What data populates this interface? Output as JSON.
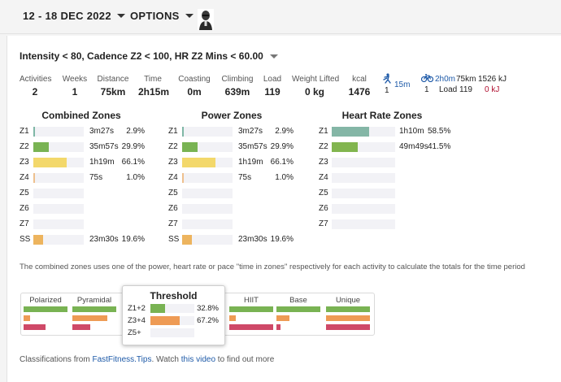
{
  "topbar": {
    "date_range": "12 - 18 DEC 2022",
    "options_label": "OPTIONS",
    "avatar_icon": "user-avatar-icon"
  },
  "filter": {
    "label": "Intensity < 80, Cadence Z2 < 100, HR Z2 Mins < 60.00"
  },
  "stats": [
    {
      "label": "Activities",
      "value": "2"
    },
    {
      "label": "Weeks",
      "value": "1"
    },
    {
      "label": "Distance",
      "value": "75km"
    },
    {
      "label": "Time",
      "value": "2h15m"
    },
    {
      "label": "Coasting",
      "value": "0m"
    },
    {
      "label": "Climbing",
      "value": "639m"
    },
    {
      "label": "Load",
      "value": "119"
    },
    {
      "label": "Weight Lifted",
      "value": "0 kg"
    },
    {
      "label": "kcal",
      "value": "1476"
    }
  ],
  "sports": {
    "run": {
      "icon": "running-icon",
      "time": "15m",
      "count": "1"
    },
    "ride": {
      "icon": "cycling-icon",
      "time": "2h0m",
      "distance": "75km",
      "energy": "1526 kJ",
      "count": "1",
      "load": "Load 119",
      "energy2": "0 kJ"
    }
  },
  "colors": {
    "z1": "#7fb7a6",
    "z2": "#79b353",
    "z3": "#f3d86b",
    "z4": "#eec08e",
    "ss": "#edb45e",
    "hr1": "#84b6a6",
    "hr2": "#82b54f",
    "red": "#cf4968",
    "orange": "#ee9b55",
    "green": "#79b353",
    "link": "#1e5aa8"
  },
  "combined_zones": {
    "title": "Combined Zones",
    "rows": [
      {
        "zone": "Z1",
        "time": "3m27s",
        "pct": "2.9%",
        "fraction": 0.029
      },
      {
        "zone": "Z2",
        "time": "35m57s",
        "pct": "29.9%",
        "fraction": 0.299
      },
      {
        "zone": "Z3",
        "time": "1h19m",
        "pct": "66.1%",
        "fraction": 0.661
      },
      {
        "zone": "Z4",
        "time": "75s",
        "pct": "1.0%",
        "fraction": 0.01
      },
      {
        "zone": "Z5",
        "time": "",
        "pct": "",
        "fraction": 0
      },
      {
        "zone": "Z6",
        "time": "",
        "pct": "",
        "fraction": 0
      },
      {
        "zone": "Z7",
        "time": "",
        "pct": "",
        "fraction": 0
      },
      {
        "zone": "SS",
        "time": "23m30s",
        "pct": "19.6%",
        "fraction": 0.196
      }
    ]
  },
  "power_zones": {
    "title": "Power Zones",
    "rows": [
      {
        "zone": "Z1",
        "time": "3m27s",
        "pct": "2.9%",
        "fraction": 0.029
      },
      {
        "zone": "Z2",
        "time": "35m57s",
        "pct": "29.9%",
        "fraction": 0.299
      },
      {
        "zone": "Z3",
        "time": "1h19m",
        "pct": "66.1%",
        "fraction": 0.661
      },
      {
        "zone": "Z4",
        "time": "75s",
        "pct": "1.0%",
        "fraction": 0.01
      },
      {
        "zone": "Z5",
        "time": "",
        "pct": "",
        "fraction": 0
      },
      {
        "zone": "Z6",
        "time": "",
        "pct": "",
        "fraction": 0
      },
      {
        "zone": "Z7",
        "time": "",
        "pct": "",
        "fraction": 0
      },
      {
        "zone": "SS",
        "time": "23m30s",
        "pct": "19.6%",
        "fraction": 0.196
      }
    ]
  },
  "hr_zones": {
    "title": "Heart Rate Zones",
    "rows": [
      {
        "zone": "Z1",
        "time": "1h10m",
        "pct": "58.5%",
        "fraction": 0.585
      },
      {
        "zone": "Z2",
        "time": "49m49s",
        "pct": "41.5%",
        "fraction": 0.415
      },
      {
        "zone": "Z3",
        "time": "",
        "pct": "",
        "fraction": 0
      },
      {
        "zone": "Z4",
        "time": "",
        "pct": "",
        "fraction": 0
      },
      {
        "zone": "Z5",
        "time": "",
        "pct": "",
        "fraction": 0
      },
      {
        "zone": "Z6",
        "time": "",
        "pct": "",
        "fraction": 0
      },
      {
        "zone": "Z7",
        "time": "",
        "pct": "",
        "fraction": 0
      }
    ]
  },
  "note": "The combined zones uses one of the power, heart rate or pace \"time in zones\" respectively for each activity to calculate the totals for the time period",
  "classifications": {
    "columns": [
      {
        "name": "Polarized",
        "levels": [
          1.0,
          0.15,
          0.5
        ]
      },
      {
        "name": "Pyramidal",
        "levels": [
          1.0,
          0.8,
          0.4
        ]
      },
      {
        "name": "HIIT",
        "levels": [
          1.0,
          0.15,
          1.0
        ]
      },
      {
        "name": "Base",
        "levels": [
          1.0,
          0.3,
          0.1
        ]
      },
      {
        "name": "Unique",
        "levels": [
          1.0,
          1.0,
          1.0
        ]
      }
    ],
    "threshold": {
      "title": "Threshold",
      "rows": [
        {
          "label": "Z1+2",
          "pct": "32.8%",
          "fraction": 0.328
        },
        {
          "label": "Z3+4",
          "pct": "67.2%",
          "fraction": 0.672
        },
        {
          "label": "Z5+",
          "pct": "",
          "fraction": 0
        }
      ]
    }
  },
  "footer": {
    "prefix": "Classifications from ",
    "link1": "FastFitness.Tips",
    "middle": ". Watch ",
    "link2": "this video",
    "suffix": " to find out more"
  }
}
